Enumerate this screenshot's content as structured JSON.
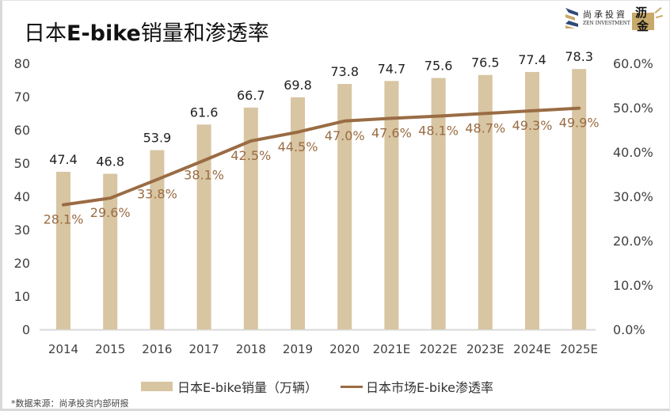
{
  "header": {
    "title_pre": "日本",
    "title_bold": "E-bike",
    "title_post": "销量和渗透率",
    "logo_cn": "尚承投資",
    "logo_en": "ZEN INVESTMENT",
    "badge_top": "沥",
    "badge_bottom": "金"
  },
  "colors": {
    "bar": "#d8c5a2",
    "line": "#9a6c44",
    "bar_label": "#1f1f1f",
    "line_label": "#9a6c44",
    "axis_text": "#404040",
    "axis_line": "#d9d9d9"
  },
  "chart_data": {
    "type": "bar",
    "title": "日本E-bike销量和渗透率",
    "categories": [
      "2014",
      "2015",
      "2016",
      "2017",
      "2018",
      "2019",
      "2020",
      "2021E",
      "2022E",
      "2023E",
      "2024E",
      "2025E"
    ],
    "series": [
      {
        "name": "日本E-bike销量（万辆）",
        "type": "bar",
        "axis": "left",
        "values": [
          47.4,
          46.8,
          53.9,
          61.6,
          66.7,
          69.8,
          73.8,
          74.7,
          75.6,
          76.5,
          77.4,
          78.3
        ],
        "labels": [
          "47.4",
          "46.8",
          "53.9",
          "61.6",
          "66.7",
          "69.8",
          "73.8",
          "74.7",
          "75.6",
          "76.5",
          "77.4",
          "78.3"
        ]
      },
      {
        "name": "日本市场E-bike渗透率",
        "type": "line",
        "axis": "right",
        "values": [
          28.1,
          29.6,
          33.8,
          38.1,
          42.5,
          44.5,
          47.0,
          47.6,
          48.1,
          48.7,
          49.3,
          49.9
        ],
        "labels": [
          "28.1%",
          "29.6%",
          "33.8%",
          "38.1%",
          "42.5%",
          "44.5%",
          "47.0%",
          "47.6%",
          "48.1%",
          "48.7%",
          "49.3%",
          "49.9%"
        ]
      }
    ],
    "y_left": {
      "min": 0,
      "max": 80,
      "step": 10,
      "ticks": [
        "0",
        "10",
        "20",
        "30",
        "40",
        "50",
        "60",
        "70",
        "80"
      ]
    },
    "y_right": {
      "min": 0,
      "max": 60,
      "step": 10,
      "ticks": [
        "0.0%",
        "10.0%",
        "20.0%",
        "30.0%",
        "40.0%",
        "50.0%",
        "60.0%"
      ]
    },
    "xlabel": "",
    "ylabel": "",
    "grid": false,
    "legend_position": "bottom"
  },
  "legend": {
    "bar_label": "日本E-bike销量（万辆）",
    "line_label": "日本市场E-bike渗透率"
  },
  "footer": {
    "source": "*数据来源：尚承投资内部研报"
  }
}
